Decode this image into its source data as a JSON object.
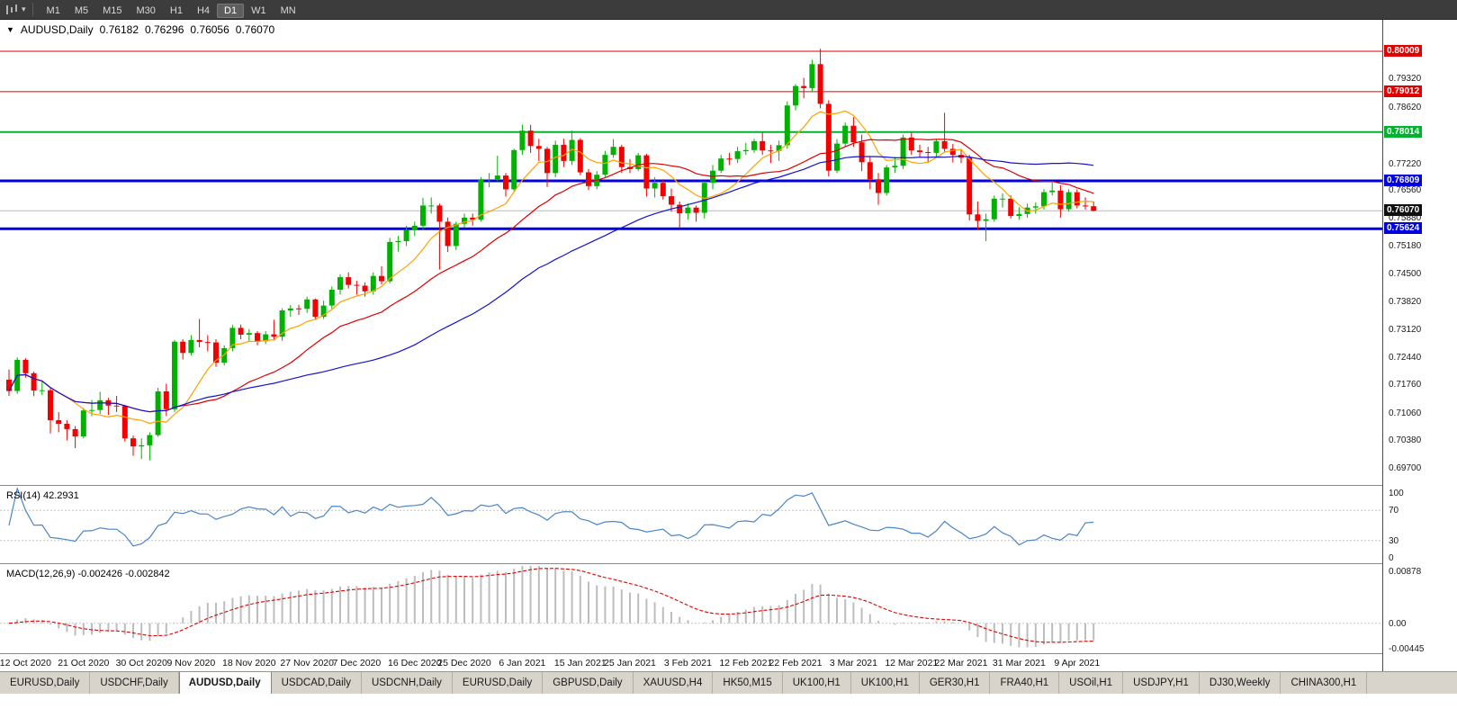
{
  "toolbar": {
    "chart_type_icon": "candlestick-chart-icon",
    "timeframes": [
      "M1",
      "M5",
      "M15",
      "M30",
      "H1",
      "H4",
      "D1",
      "W1",
      "MN"
    ],
    "active_timeframe": "D1"
  },
  "chart": {
    "title": "AUDUSD,Daily",
    "ohlc": {
      "open": "0.76182",
      "high": "0.76296",
      "low": "0.76056",
      "close": "0.76070"
    },
    "levels": [
      {
        "price": 0.80009,
        "label": "0.80009",
        "color": "#e00000",
        "width": 1
      },
      {
        "price": 0.79012,
        "label": "0.79012",
        "color": "#e00000",
        "width": 1
      },
      {
        "price": 0.78014,
        "label": "0.78014",
        "color": "#00b22d",
        "width": 2
      },
      {
        "price": 0.76809,
        "label": "0.76809",
        "color": "#0000e0",
        "width": 3
      },
      {
        "price": 0.75624,
        "label": "0.75624",
        "color": "#0000e0",
        "width": 3
      }
    ],
    "current_price": {
      "value": 0.7607,
      "label": "0.76070",
      "badge_color": "#101010"
    }
  },
  "chart_data": {
    "type": "candlestick",
    "title": "AUDUSD,Daily",
    "symbol": "AUDUSD",
    "timeframe": "Daily",
    "up_color": "#00b200",
    "down_color": "#f40000",
    "y_axis": {
      "top": 0.80786,
      "bottom": 0.693,
      "labels": [
        "0.79320",
        "0.78620",
        "0.77920",
        "0.77220",
        "0.76560",
        "0.75880",
        "0.75180",
        "0.74500",
        "0.73820",
        "0.73120",
        "0.72440",
        "0.71760",
        "0.71060",
        "0.70380",
        "0.69700"
      ]
    },
    "moving_averages": [
      {
        "name": "fast-ma",
        "period": 8,
        "color": "#ffa200"
      },
      {
        "name": "mid-ma",
        "period": 21,
        "color": "#dd0000"
      },
      {
        "name": "slow-ma",
        "period": 45,
        "color": "#1414cc"
      }
    ],
    "x_labels": [
      {
        "text": "12 Oct 2020",
        "index": 2
      },
      {
        "text": "21 Oct 2020",
        "index": 9
      },
      {
        "text": "30 Oct 2020",
        "index": 16
      },
      {
        "text": "9 Nov 2020",
        "index": 22
      },
      {
        "text": "18 Nov 2020",
        "index": 29
      },
      {
        "text": "27 Nov 2020",
        "index": 36
      },
      {
        "text": "7 Dec 2020",
        "index": 42
      },
      {
        "text": "16 Dec 2020",
        "index": 49
      },
      {
        "text": "25 Dec 2020",
        "index": 55
      },
      {
        "text": "6 Jan 2021",
        "index": 62
      },
      {
        "text": "15 Jan 2021",
        "index": 69
      },
      {
        "text": "25 Jan 2021",
        "index": 75
      },
      {
        "text": "3 Feb 2021",
        "index": 82
      },
      {
        "text": "12 Feb 2021",
        "index": 89
      },
      {
        "text": "22 Feb 2021",
        "index": 95
      },
      {
        "text": "3 Mar 2021",
        "index": 102
      },
      {
        "text": "12 Mar 2021",
        "index": 109
      },
      {
        "text": "22 Mar 2021",
        "index": 115
      },
      {
        "text": "31 Mar 2021",
        "index": 122
      },
      {
        "text": "9 Apr 2021",
        "index": 129
      }
    ],
    "candles": [
      [
        0.719,
        0.7215,
        0.715,
        0.7162
      ],
      [
        0.7162,
        0.7245,
        0.7155,
        0.7239
      ],
      [
        0.7239,
        0.7243,
        0.7195,
        0.7206
      ],
      [
        0.7206,
        0.721,
        0.7149,
        0.7163
      ],
      [
        0.7163,
        0.7185,
        0.7152,
        0.7164
      ],
      [
        0.7164,
        0.717,
        0.7057,
        0.709
      ],
      [
        0.709,
        0.711,
        0.706,
        0.7081
      ],
      [
        0.7081,
        0.709,
        0.704,
        0.7068
      ],
      [
        0.7068,
        0.7075,
        0.7021,
        0.705
      ],
      [
        0.705,
        0.712,
        0.7045,
        0.7114
      ],
      [
        0.7114,
        0.714,
        0.71,
        0.7115
      ],
      [
        0.7115,
        0.716,
        0.7105,
        0.7139
      ],
      [
        0.7139,
        0.7145,
        0.7103,
        0.7126
      ],
      [
        0.7126,
        0.715,
        0.711,
        0.7125
      ],
      [
        0.7125,
        0.7128,
        0.7037,
        0.7045
      ],
      [
        0.7045,
        0.7052,
        0.7002,
        0.7025
      ],
      [
        0.7025,
        0.7045,
        0.6994,
        0.7028
      ],
      [
        0.7028,
        0.706,
        0.6991,
        0.7053
      ],
      [
        0.7053,
        0.717,
        0.7049,
        0.7161
      ],
      [
        0.7161,
        0.718,
        0.71,
        0.7117
      ],
      [
        0.7117,
        0.7288,
        0.711,
        0.7284
      ],
      [
        0.7284,
        0.729,
        0.724,
        0.7256
      ],
      [
        0.7256,
        0.73,
        0.725,
        0.7288
      ],
      [
        0.7288,
        0.734,
        0.727,
        0.7283
      ],
      [
        0.7283,
        0.73,
        0.726,
        0.7282
      ],
      [
        0.7282,
        0.729,
        0.7222,
        0.7232
      ],
      [
        0.7232,
        0.7275,
        0.7225,
        0.7268
      ],
      [
        0.7268,
        0.7325,
        0.726,
        0.7318
      ],
      [
        0.7318,
        0.7326,
        0.729,
        0.7301
      ],
      [
        0.7301,
        0.7315,
        0.7284,
        0.7305
      ],
      [
        0.7305,
        0.731,
        0.7275,
        0.7285
      ],
      [
        0.7285,
        0.731,
        0.7278,
        0.7302
      ],
      [
        0.7302,
        0.7338,
        0.7287,
        0.7296
      ],
      [
        0.7296,
        0.7366,
        0.7286,
        0.7361
      ],
      [
        0.7361,
        0.7374,
        0.7345,
        0.7366
      ],
      [
        0.7366,
        0.7375,
        0.735,
        0.7365
      ],
      [
        0.7365,
        0.7395,
        0.7355,
        0.7388
      ],
      [
        0.7388,
        0.739,
        0.7338,
        0.7345
      ],
      [
        0.7345,
        0.7385,
        0.734,
        0.7373
      ],
      [
        0.7373,
        0.742,
        0.7365,
        0.7412
      ],
      [
        0.7412,
        0.745,
        0.74,
        0.7443
      ],
      [
        0.7443,
        0.7455,
        0.7415,
        0.7424
      ],
      [
        0.7424,
        0.7434,
        0.74,
        0.7422
      ],
      [
        0.7422,
        0.743,
        0.7395,
        0.7408
      ],
      [
        0.7408,
        0.7455,
        0.74,
        0.7446
      ],
      [
        0.7446,
        0.747,
        0.7425,
        0.7433
      ],
      [
        0.7433,
        0.754,
        0.7428,
        0.753
      ],
      [
        0.753,
        0.7545,
        0.7506,
        0.7532
      ],
      [
        0.7532,
        0.757,
        0.752,
        0.756
      ],
      [
        0.756,
        0.758,
        0.7545,
        0.757
      ],
      [
        0.757,
        0.7639,
        0.756,
        0.762
      ],
      [
        0.762,
        0.764,
        0.76,
        0.762
      ],
      [
        0.762,
        0.7625,
        0.7462,
        0.758
      ],
      [
        0.758,
        0.759,
        0.7505,
        0.752
      ],
      [
        0.752,
        0.758,
        0.751,
        0.7575
      ],
      [
        0.7575,
        0.76,
        0.7565,
        0.759
      ],
      [
        0.759,
        0.76,
        0.757,
        0.7585
      ],
      [
        0.7585,
        0.769,
        0.758,
        0.7685
      ],
      [
        0.7685,
        0.77,
        0.7665,
        0.7685
      ],
      [
        0.7685,
        0.7743,
        0.768,
        0.7694
      ],
      [
        0.7694,
        0.77,
        0.7642,
        0.766
      ],
      [
        0.766,
        0.776,
        0.7655,
        0.7757
      ],
      [
        0.7757,
        0.782,
        0.7745,
        0.7805
      ],
      [
        0.7805,
        0.7819,
        0.775,
        0.7767
      ],
      [
        0.7767,
        0.7785,
        0.773,
        0.776
      ],
      [
        0.776,
        0.7765,
        0.7666,
        0.77
      ],
      [
        0.77,
        0.778,
        0.769,
        0.777
      ],
      [
        0.777,
        0.7785,
        0.7715,
        0.773
      ],
      [
        0.773,
        0.7805,
        0.772,
        0.7782
      ],
      [
        0.7782,
        0.7786,
        0.7695,
        0.7702
      ],
      [
        0.7702,
        0.771,
        0.7658,
        0.7668
      ],
      [
        0.7668,
        0.7705,
        0.766,
        0.7696
      ],
      [
        0.7696,
        0.7755,
        0.769,
        0.7745
      ],
      [
        0.7745,
        0.7784,
        0.7738,
        0.7765
      ],
      [
        0.7765,
        0.777,
        0.77,
        0.7715
      ],
      [
        0.7715,
        0.7735,
        0.77,
        0.771
      ],
      [
        0.771,
        0.775,
        0.7705,
        0.7744
      ],
      [
        0.7744,
        0.7748,
        0.7642,
        0.7662
      ],
      [
        0.7662,
        0.769,
        0.764,
        0.7676
      ],
      [
        0.7676,
        0.7685,
        0.7635,
        0.7643
      ],
      [
        0.7643,
        0.7662,
        0.7605,
        0.7622
      ],
      [
        0.7622,
        0.763,
        0.7563,
        0.7601
      ],
      [
        0.7601,
        0.7625,
        0.7585,
        0.7615
      ],
      [
        0.7615,
        0.762,
        0.758,
        0.7602
      ],
      [
        0.7602,
        0.768,
        0.7588,
        0.7676
      ],
      [
        0.7676,
        0.772,
        0.766,
        0.7706
      ],
      [
        0.7706,
        0.7745,
        0.77,
        0.7736
      ],
      [
        0.7736,
        0.775,
        0.772,
        0.7735
      ],
      [
        0.7735,
        0.7765,
        0.7725,
        0.7754
      ],
      [
        0.7754,
        0.7775,
        0.7745,
        0.7757
      ],
      [
        0.7757,
        0.7785,
        0.775,
        0.7779
      ],
      [
        0.7779,
        0.78,
        0.7745,
        0.7756
      ],
      [
        0.7756,
        0.777,
        0.7725,
        0.7755
      ],
      [
        0.7755,
        0.778,
        0.773,
        0.7769
      ],
      [
        0.7769,
        0.7877,
        0.776,
        0.7867
      ],
      [
        0.7867,
        0.792,
        0.7855,
        0.7915
      ],
      [
        0.7915,
        0.7935,
        0.7885,
        0.791
      ],
      [
        0.791,
        0.798,
        0.79,
        0.7969
      ],
      [
        0.7969,
        0.8007,
        0.786,
        0.7871
      ],
      [
        0.7871,
        0.788,
        0.7692,
        0.7706
      ],
      [
        0.7706,
        0.7784,
        0.77,
        0.7773
      ],
      [
        0.7773,
        0.7825,
        0.7765,
        0.7817
      ],
      [
        0.7817,
        0.7838,
        0.7765,
        0.7776
      ],
      [
        0.7776,
        0.7795,
        0.7705,
        0.7727
      ],
      [
        0.7727,
        0.774,
        0.766,
        0.7685
      ],
      [
        0.7685,
        0.77,
        0.7622,
        0.7651
      ],
      [
        0.7651,
        0.772,
        0.7645,
        0.7714
      ],
      [
        0.7714,
        0.774,
        0.77,
        0.7718
      ],
      [
        0.7718,
        0.7795,
        0.771,
        0.7788
      ],
      [
        0.7788,
        0.78,
        0.7745,
        0.7756
      ],
      [
        0.7756,
        0.777,
        0.774,
        0.7752
      ],
      [
        0.7752,
        0.7765,
        0.7727,
        0.775
      ],
      [
        0.775,
        0.7785,
        0.774,
        0.7779
      ],
      [
        0.7779,
        0.7849,
        0.7752,
        0.776
      ],
      [
        0.776,
        0.7772,
        0.7726,
        0.7745
      ],
      [
        0.7745,
        0.776,
        0.7725,
        0.7738
      ],
      [
        0.7738,
        0.7745,
        0.7583,
        0.7598
      ],
      [
        0.7598,
        0.763,
        0.756,
        0.7582
      ],
      [
        0.7582,
        0.76,
        0.7532,
        0.7586
      ],
      [
        0.7586,
        0.7645,
        0.758,
        0.7637
      ],
      [
        0.7637,
        0.765,
        0.7615,
        0.7637
      ],
      [
        0.7637,
        0.7645,
        0.7588,
        0.7594
      ],
      [
        0.7594,
        0.7616,
        0.7585,
        0.7599
      ],
      [
        0.7599,
        0.7625,
        0.759,
        0.7615
      ],
      [
        0.7615,
        0.7628,
        0.76,
        0.7618
      ],
      [
        0.7618,
        0.766,
        0.761,
        0.7653
      ],
      [
        0.7653,
        0.7677,
        0.7645,
        0.7657
      ],
      [
        0.7657,
        0.767,
        0.759,
        0.7611
      ],
      [
        0.7611,
        0.766,
        0.7605,
        0.7653
      ],
      [
        0.7653,
        0.766,
        0.7613,
        0.762
      ],
      [
        0.762,
        0.764,
        0.761,
        0.76182
      ],
      [
        0.76182,
        0.76296,
        0.76056,
        0.7607
      ]
    ]
  },
  "rsi_panel": {
    "label": "RSI(14) 42.2931",
    "period": 14,
    "value": "42.2931",
    "scale": [
      "100",
      "70",
      "30",
      "0"
    ],
    "levels": [
      70,
      30
    ],
    "line_color": "#4a86c8"
  },
  "macd_panel": {
    "label": "MACD(12,26,9) -0.002426 -0.002842",
    "values": [
      "-0.002426",
      "-0.002842"
    ],
    "scale": [
      "0.00878",
      "0.00",
      "-0.00445"
    ],
    "scale_values": [
      0.00878,
      0,
      -0.00445
    ],
    "max": 0.00878,
    "min": -0.00445,
    "histogram_color": "#bdbdbd",
    "signal_color": "#e00000"
  },
  "tabs": {
    "items": [
      "EURUSD,Daily",
      "USDCHF,Daily",
      "AUDUSD,Daily",
      "USDCAD,Daily",
      "USDCNH,Daily",
      "EURUSD,Daily",
      "GBPUSD,Daily",
      "XAUUSD,H4",
      "HK50,M15",
      "UK100,H1",
      "UK100,H1",
      "GER30,H1",
      "FRA40,H1",
      "USOil,H1",
      "USDJPY,H1",
      "DJ30,Weekly",
      "CHINA300,H1"
    ],
    "active": "AUDUSD,Daily",
    "active_index": 2
  }
}
